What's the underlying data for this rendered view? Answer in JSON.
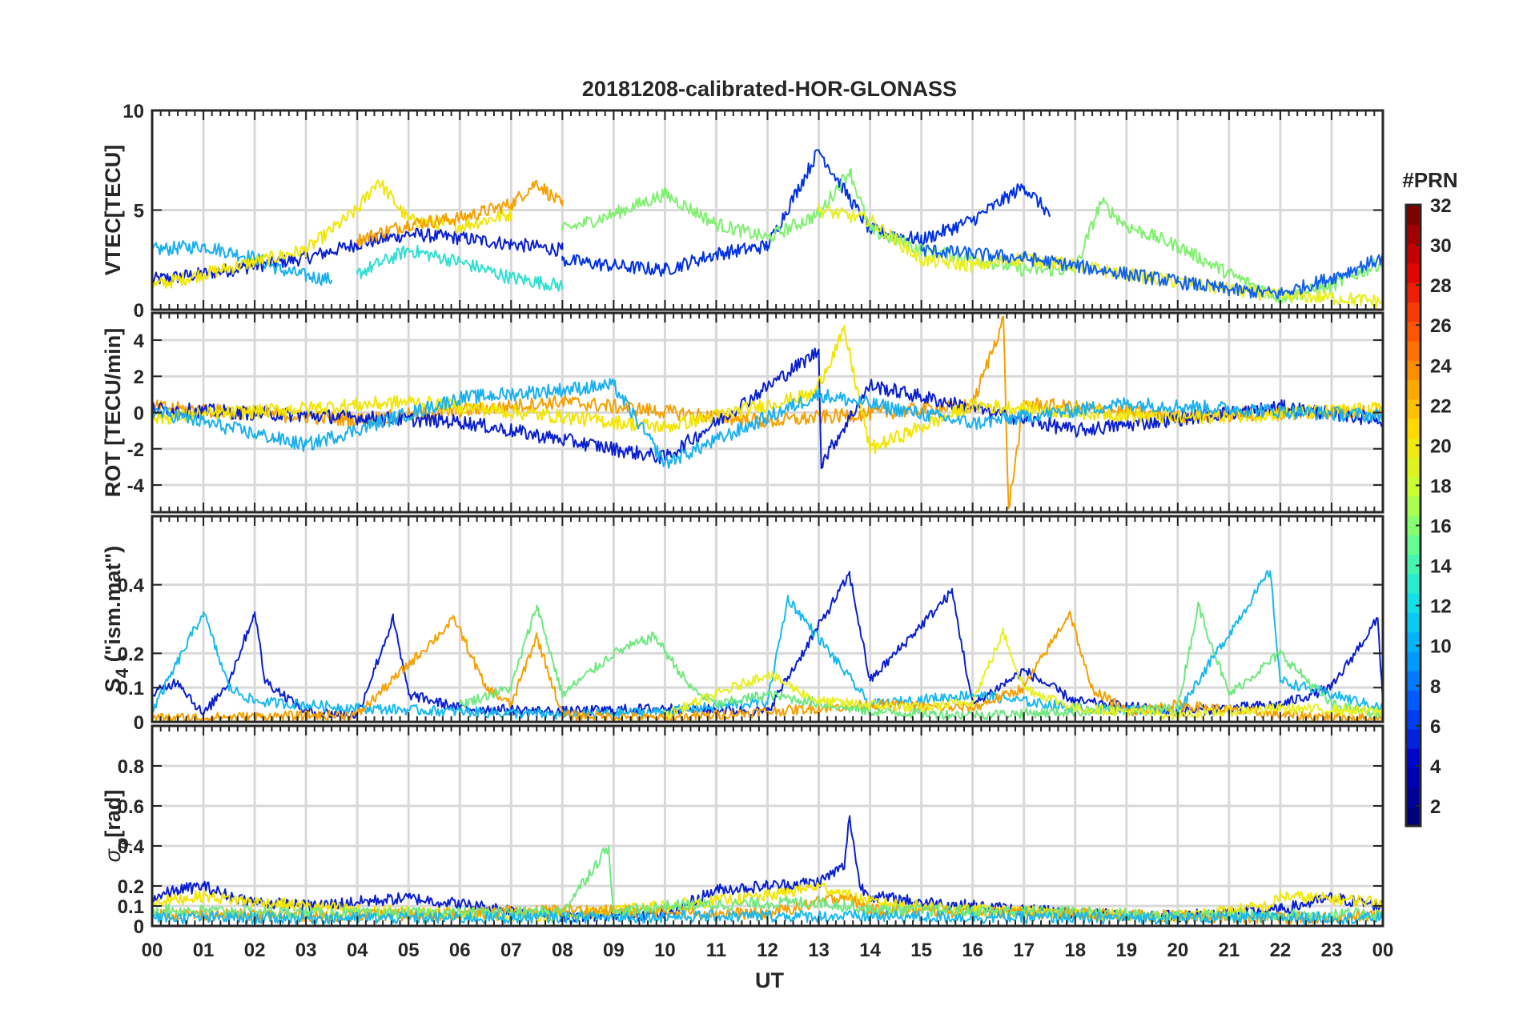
{
  "figure": {
    "title": "20181208-calibrated-HOR-GLONASS",
    "xlabel": "UT",
    "x_ticks": [
      "00",
      "01",
      "02",
      "03",
      "04",
      "05",
      "06",
      "07",
      "08",
      "09",
      "10",
      "11",
      "12",
      "13",
      "14",
      "15",
      "16",
      "17",
      "18",
      "19",
      "20",
      "21",
      "22",
      "23",
      "00"
    ]
  },
  "chart_data": [
    {
      "type": "line",
      "panel": "VTEC",
      "ylabel": "VTEC[TECU]",
      "xlim": [
        0,
        24
      ],
      "ylim": [
        0,
        10
      ],
      "yticks": [
        0,
        5,
        10
      ],
      "ytick_labels": [
        "0",
        "5",
        "10"
      ],
      "grid": true,
      "series": [
        {
          "prn": 3,
          "color": "#0a1fd0",
          "x": [
            0,
            1,
            2,
            3,
            4,
            5,
            6,
            7,
            8
          ],
          "values": [
            1.5,
            1.8,
            2.2,
            2.6,
            3.3,
            3.8,
            3.6,
            3.3,
            3.0
          ]
        },
        {
          "prn": 9,
          "color": "#1ab0f0",
          "x": [
            0,
            0.5,
            1,
            1.5,
            2,
            2.5,
            3,
            3.5
          ],
          "values": [
            3.0,
            3.1,
            3.2,
            2.9,
            2.6,
            2.0,
            1.7,
            1.5
          ]
        },
        {
          "prn": 20,
          "color": "#f2e600",
          "x": [
            0,
            1,
            2,
            3,
            4,
            4.4,
            5,
            6,
            7
          ],
          "values": [
            1.2,
            1.8,
            2.4,
            3.0,
            5.0,
            6.5,
            4.5,
            4.2,
            4.8
          ]
        },
        {
          "prn": 22,
          "color": "#f5a000",
          "x": [
            4,
            5,
            6,
            7,
            7.5,
            8
          ],
          "values": [
            3.5,
            4.3,
            4.6,
            5.3,
            6.4,
            5.2
          ]
        },
        {
          "prn": 13,
          "color": "#30e0d0",
          "x": [
            4,
            5,
            6,
            7,
            8
          ],
          "values": [
            1.8,
            3.0,
            2.4,
            1.6,
            1.2
          ]
        },
        {
          "prn": 4,
          "color": "#0030e8",
          "x": [
            8,
            9,
            10,
            11,
            12,
            13,
            14,
            15,
            16,
            17,
            17.5
          ],
          "values": [
            2.5,
            2.2,
            2.0,
            2.8,
            3.2,
            8.0,
            4.0,
            3.5,
            4.5,
            6.2,
            4.8
          ]
        },
        {
          "prn": 17,
          "color": "#80f070",
          "x": [
            8,
            9,
            10,
            11,
            12,
            13,
            13.6,
            14,
            15,
            16,
            17,
            18,
            18.5,
            19,
            20,
            21,
            22,
            23,
            24
          ],
          "values": [
            4.0,
            4.8,
            5.8,
            4.3,
            3.6,
            4.8,
            7.0,
            4.0,
            3.0,
            2.6,
            2.0,
            2.0,
            5.4,
            4.2,
            3.2,
            1.8,
            0.6,
            1.2,
            2.4
          ]
        },
        {
          "prn": 19,
          "color": "#e8f020",
          "x": [
            13,
            14,
            15,
            16,
            17,
            18,
            19,
            20,
            21,
            22,
            23,
            24
          ],
          "values": [
            5.0,
            4.5,
            2.5,
            2.2,
            2.6,
            2.2,
            1.8,
            1.4,
            1.0,
            0.7,
            0.6,
            0.4
          ]
        },
        {
          "prn": 7,
          "color": "#1060f0",
          "x": [
            15,
            16,
            17,
            18,
            19,
            20,
            21,
            22,
            23,
            24
          ],
          "values": [
            3.0,
            2.8,
            2.6,
            2.2,
            1.8,
            1.4,
            1.0,
            0.8,
            1.6,
            2.6
          ]
        }
      ]
    },
    {
      "type": "line",
      "panel": "ROT",
      "ylabel": "ROT [TECU/min]",
      "xlim": [
        0,
        24
      ],
      "ylim": [
        -5.5,
        5.5
      ],
      "yticks": [
        -4,
        -2,
        0,
        2,
        4
      ],
      "ytick_labels": [
        "-4",
        "-2",
        "0",
        "2",
        "4"
      ],
      "grid": true,
      "series": [
        {
          "prn": 22,
          "color": "#f5a000",
          "x": [
            0,
            4,
            8,
            12,
            16,
            16.6,
            16.7,
            17,
            20,
            24
          ],
          "values": [
            0.3,
            -0.4,
            0.6,
            -0.5,
            0.4,
            5.2,
            -5.3,
            0.5,
            -0.2,
            0.1
          ]
        },
        {
          "prn": 3,
          "color": "#0a1fd0",
          "x": [
            0,
            6,
            10,
            13,
            13.05,
            14,
            18,
            22,
            24
          ],
          "values": [
            0.2,
            -0.5,
            -2.5,
            3.4,
            -2.8,
            1.5,
            -1.0,
            0.3,
            -0.4
          ]
        },
        {
          "prn": 20,
          "color": "#f2e600",
          "x": [
            0,
            5,
            10,
            12.9,
            13.5,
            14,
            16,
            20,
            24
          ],
          "values": [
            -0.3,
            0.6,
            -0.8,
            1.0,
            4.5,
            -2.0,
            0.4,
            -0.3,
            0.2
          ]
        },
        {
          "prn": 9,
          "color": "#1ab0f0",
          "x": [
            0,
            3,
            6,
            9,
            10,
            13,
            16,
            19,
            24
          ],
          "values": [
            0.1,
            -1.8,
            0.8,
            1.5,
            -2.8,
            1.0,
            -0.6,
            0.5,
            -0.2
          ]
        }
      ]
    },
    {
      "type": "line",
      "panel": "S4",
      "ylabel": "S4 (\"ism.mat\")",
      "ylabel_main": "S",
      "ylabel_sub": "4",
      "ylabel_rest": " (\"ism.mat\")",
      "xlim": [
        0,
        24
      ],
      "ylim": [
        0,
        0.6
      ],
      "yticks": [
        0,
        0.1,
        0.2,
        0.4
      ],
      "ytick_labels": [
        "0",
        "0.1",
        "0.2",
        "0.4"
      ],
      "grid": true,
      "series": [
        {
          "prn": 3,
          "color": "#0a1fd0",
          "x": [
            0,
            0.5,
            1,
            1.5,
            2,
            2.2,
            3,
            4,
            4.7,
            5,
            6,
            8,
            10,
            12,
            13.6,
            14,
            15.6,
            16,
            17,
            18,
            20,
            22,
            23,
            23.9,
            24
          ],
          "values": [
            0.08,
            0.12,
            0.02,
            0.12,
            0.32,
            0.12,
            0.03,
            0.02,
            0.3,
            0.08,
            0.04,
            0.03,
            0.04,
            0.03,
            0.43,
            0.12,
            0.38,
            0.05,
            0.15,
            0.06,
            0.03,
            0.05,
            0.1,
            0.3,
            0.06
          ]
        },
        {
          "prn": 10,
          "color": "#18b8f0",
          "x": [
            0,
            1,
            1.5,
            2,
            4,
            6,
            8,
            10,
            12,
            12.4,
            14,
            16,
            18,
            20,
            21.8,
            22,
            23,
            24
          ],
          "values": [
            0.03,
            0.32,
            0.1,
            0.06,
            0.04,
            0.03,
            0.02,
            0.03,
            0.06,
            0.36,
            0.05,
            0.08,
            0.04,
            0.03,
            0.44,
            0.12,
            0.08,
            0.04
          ]
        },
        {
          "prn": 22,
          "color": "#f5a000",
          "x": [
            0,
            4,
            5.9,
            6.5,
            7,
            7.5,
            8,
            10,
            14,
            16,
            17,
            17.9,
            18.3,
            19,
            20,
            22,
            24
          ],
          "values": [
            0.01,
            0.02,
            0.3,
            0.1,
            0.05,
            0.25,
            0.02,
            0.01,
            0.05,
            0.04,
            0.1,
            0.32,
            0.1,
            0.03,
            0.05,
            0.02,
            0.01
          ]
        },
        {
          "prn": 16,
          "color": "#70e880",
          "x": [
            6,
            7,
            7.5,
            8,
            9,
            9.8,
            10.5,
            11,
            12,
            14,
            16,
            18,
            20,
            20.4,
            21,
            22,
            23,
            24
          ],
          "values": [
            0.05,
            0.1,
            0.34,
            0.08,
            0.2,
            0.25,
            0.1,
            0.05,
            0.08,
            0.03,
            0.02,
            0.03,
            0.04,
            0.34,
            0.08,
            0.2,
            0.05,
            0.02
          ]
        },
        {
          "prn": 19,
          "color": "#e8f020",
          "x": [
            10,
            11,
            12,
            13,
            14,
            15,
            16,
            16.6,
            17,
            18,
            19,
            20,
            22,
            24
          ],
          "values": [
            0.02,
            0.08,
            0.14,
            0.06,
            0.05,
            0.04,
            0.06,
            0.26,
            0.1,
            0.04,
            0.03,
            0.02,
            0.04,
            0.03
          ]
        }
      ]
    },
    {
      "type": "line",
      "panel": "SigmaPhi",
      "ylabel": "σφ[rad]",
      "ylabel_main": "σ",
      "ylabel_sub": "φ",
      "ylabel_rest": "[rad]",
      "xlim": [
        0,
        24
      ],
      "ylim": [
        0,
        1
      ],
      "yticks": [
        0,
        0.1,
        0.2,
        0.4,
        0.6,
        0.8
      ],
      "ytick_labels": [
        "0",
        "0.1",
        "0.2",
        "0.4",
        "0.6",
        "0.8"
      ],
      "grid": true,
      "series": [
        {
          "prn": 3,
          "color": "#0a1fd0",
          "x": [
            0,
            0.5,
            1,
            1.5,
            2,
            3,
            4,
            5,
            8,
            10,
            11,
            12,
            13,
            13.5,
            13.6,
            13.8,
            14,
            15,
            16,
            18,
            20,
            22,
            23,
            24
          ],
          "values": [
            0.14,
            0.18,
            0.2,
            0.15,
            0.12,
            0.1,
            0.12,
            0.14,
            0.05,
            0.06,
            0.18,
            0.2,
            0.22,
            0.3,
            0.55,
            0.2,
            0.15,
            0.12,
            0.1,
            0.06,
            0.05,
            0.08,
            0.14,
            0.1
          ]
        },
        {
          "prn": 20,
          "color": "#f2e600",
          "x": [
            0,
            1,
            2,
            4,
            6,
            8,
            10,
            12,
            13,
            14,
            16,
            18,
            20,
            21.8,
            22,
            24
          ],
          "values": [
            0.12,
            0.15,
            0.12,
            0.08,
            0.06,
            0.05,
            0.1,
            0.15,
            0.2,
            0.12,
            0.08,
            0.06,
            0.05,
            0.1,
            0.15,
            0.12
          ]
        },
        {
          "prn": 22,
          "color": "#f5a000",
          "x": [
            0,
            4,
            6,
            8,
            10,
            12,
            13.5,
            14,
            16,
            18,
            20,
            22,
            24
          ],
          "values": [
            0.06,
            0.05,
            0.06,
            0.08,
            0.07,
            0.06,
            0.15,
            0.08,
            0.07,
            0.06,
            0.05,
            0.04,
            0.05
          ]
        },
        {
          "prn": 16,
          "color": "#70e880",
          "x": [
            0,
            4,
            8,
            8.9,
            9,
            10,
            13,
            14,
            18,
            20,
            24
          ],
          "values": [
            0.08,
            0.06,
            0.07,
            0.4,
            0.06,
            0.1,
            0.12,
            0.08,
            0.07,
            0.05,
            0.06
          ]
        },
        {
          "prn": 10,
          "color": "#18b8f0",
          "x": [
            0,
            6,
            12,
            18,
            24
          ],
          "values": [
            0.04,
            0.04,
            0.05,
            0.04,
            0.04
          ]
        }
      ]
    }
  ],
  "colorbar": {
    "label": "#PRN",
    "ticks": [
      "2",
      "4",
      "6",
      "8",
      "10",
      "12",
      "14",
      "16",
      "18",
      "20",
      "22",
      "24",
      "26",
      "28",
      "30",
      "32"
    ],
    "range": [
      1,
      32
    ],
    "stops": [
      "#00007f",
      "#0000c8",
      "#0050ff",
      "#00a8ff",
      "#14e6e6",
      "#66ff8c",
      "#c8ff33",
      "#ffe000",
      "#ff9a00",
      "#ff4a00",
      "#e00000",
      "#7f0000"
    ]
  }
}
